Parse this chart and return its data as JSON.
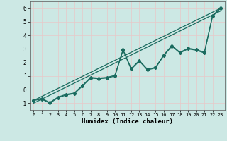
{
  "title": "",
  "xlabel": "Humidex (Indice chaleur)",
  "xlim": [
    -0.5,
    23.5
  ],
  "ylim": [
    -1.5,
    6.5
  ],
  "yticks": [
    -1,
    0,
    1,
    2,
    3,
    4,
    5,
    6
  ],
  "xticks": [
    0,
    1,
    2,
    3,
    4,
    5,
    6,
    7,
    8,
    9,
    10,
    11,
    12,
    13,
    14,
    15,
    16,
    17,
    18,
    19,
    20,
    21,
    22,
    23
  ],
  "bg_color": "#cce8e4",
  "line_color": "#1a6b5f",
  "grid_color": "#e8c8c8",
  "line1_x": [
    0,
    1,
    2,
    3,
    4,
    5,
    6,
    7,
    8,
    9,
    10,
    11,
    12,
    13,
    14,
    15,
    16,
    17,
    18,
    19,
    20,
    21,
    22,
    23
  ],
  "line1_y": [
    -0.8,
    -0.7,
    -1.0,
    -0.6,
    -0.4,
    -0.3,
    0.25,
    0.85,
    0.8,
    0.85,
    1.0,
    2.9,
    1.5,
    2.1,
    1.45,
    1.6,
    2.5,
    3.2,
    2.7,
    3.0,
    2.9,
    2.7,
    5.4,
    6.0
  ],
  "line2_x": [
    0,
    23
  ],
  "line2_y": [
    -0.8,
    6.0
  ],
  "line3_x": [
    0,
    1,
    2,
    3,
    4,
    5,
    6,
    7,
    8,
    9,
    10,
    11,
    12,
    13,
    14,
    15,
    16,
    17,
    18,
    19,
    20,
    21,
    22,
    23
  ],
  "line3_y": [
    -0.75,
    -0.65,
    -0.95,
    -0.55,
    -0.35,
    -0.25,
    0.3,
    0.9,
    0.85,
    0.9,
    1.05,
    2.95,
    1.55,
    2.15,
    1.5,
    1.65,
    2.55,
    3.25,
    2.75,
    3.05,
    2.95,
    2.75,
    5.45,
    6.05
  ],
  "line4_x": [
    0,
    23
  ],
  "line4_y": [
    -1.0,
    5.8
  ]
}
